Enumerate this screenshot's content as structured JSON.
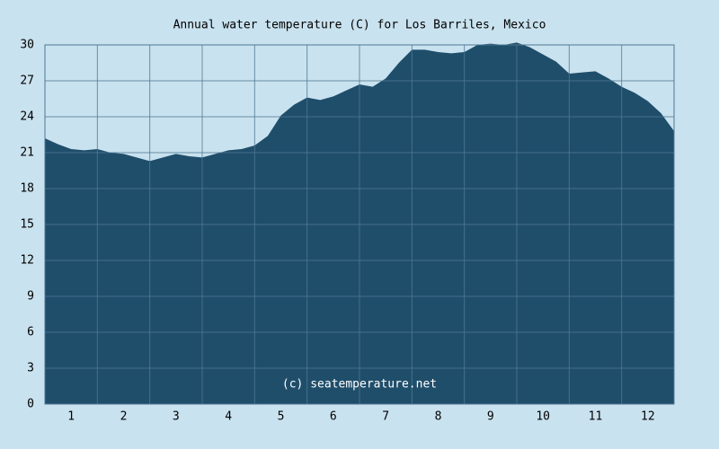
{
  "chart_data": {
    "type": "area",
    "title": "Annual water temperature (C) for Los Barriles, Mexico",
    "annotation": "(c) seatemperature.net",
    "x": [
      0.5,
      0.75,
      1,
      1.25,
      1.5,
      1.75,
      2,
      2.25,
      2.5,
      2.75,
      3,
      3.25,
      3.5,
      3.75,
      4,
      4.25,
      4.5,
      4.75,
      5,
      5.25,
      5.5,
      5.75,
      6,
      6.25,
      6.5,
      6.75,
      7,
      7.25,
      7.5,
      7.75,
      8,
      8.25,
      8.5,
      8.75,
      9,
      9.25,
      9.5,
      9.75,
      10,
      10.25,
      10.5,
      10.75,
      11,
      11.25,
      11.5,
      11.75,
      12,
      12.25,
      12.5
    ],
    "values": [
      22.2,
      21.7,
      21.3,
      21.2,
      21.3,
      21.0,
      20.9,
      20.6,
      20.3,
      20.6,
      20.9,
      20.7,
      20.6,
      20.9,
      21.2,
      21.3,
      21.6,
      22.4,
      24.1,
      25.0,
      25.6,
      25.4,
      25.7,
      26.2,
      26.7,
      26.5,
      27.2,
      28.5,
      29.6,
      29.6,
      29.4,
      29.3,
      29.4,
      30.0,
      30.1,
      30.0,
      30.2,
      29.8,
      29.2,
      28.6,
      27.6,
      27.7,
      27.8,
      27.2,
      26.5,
      26.0,
      25.3,
      24.3,
      22.8
    ],
    "color": "#1f4e6b",
    "xlim": [
      0.5,
      12.5
    ],
    "xticks": [
      1,
      2,
      3,
      4,
      5,
      6,
      7,
      8,
      9,
      10,
      11,
      12
    ],
    "ylim": [
      0,
      30
    ],
    "yticks": [
      0,
      3,
      6,
      9,
      12,
      15,
      18,
      21,
      24,
      27,
      30
    ],
    "grid": true
  }
}
